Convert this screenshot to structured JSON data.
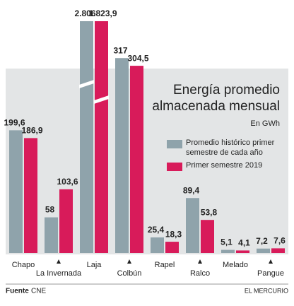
{
  "chart_data": {
    "type": "bar",
    "title": [
      "Energía promedio",
      "almacenada mensual"
    ],
    "subtitle": "En GWh",
    "categories": [
      "Chapo",
      "La Invernada",
      "Laja",
      "Colbún",
      "Rapel",
      "Ralco",
      "Melado",
      "Pangue"
    ],
    "series": [
      {
        "name": "Promedio histórico primer semestre de cada año",
        "color": "#8fa3ab",
        "values": [
          199.6,
          58,
          2806,
          317,
          25.4,
          89.4,
          5.1,
          7.2
        ],
        "value_labels": [
          "199,6",
          "58",
          "2.806",
          "317",
          "25,4",
          "89,4",
          "5,1",
          "7,2"
        ]
      },
      {
        "name": "Primer semestre 2019",
        "color": "#d81b5a",
        "values": [
          186.9,
          103.6,
          1823.9,
          304.5,
          18.3,
          53.8,
          4.1,
          7.6
        ],
        "value_labels": [
          "186,9",
          "103,6",
          "1.823,9",
          "304,5",
          "18,3",
          "53,8",
          "4,1",
          "7,6"
        ]
      }
    ],
    "source_label": "Fuente",
    "source": "CNE",
    "publisher": "EL MERCURIO"
  }
}
